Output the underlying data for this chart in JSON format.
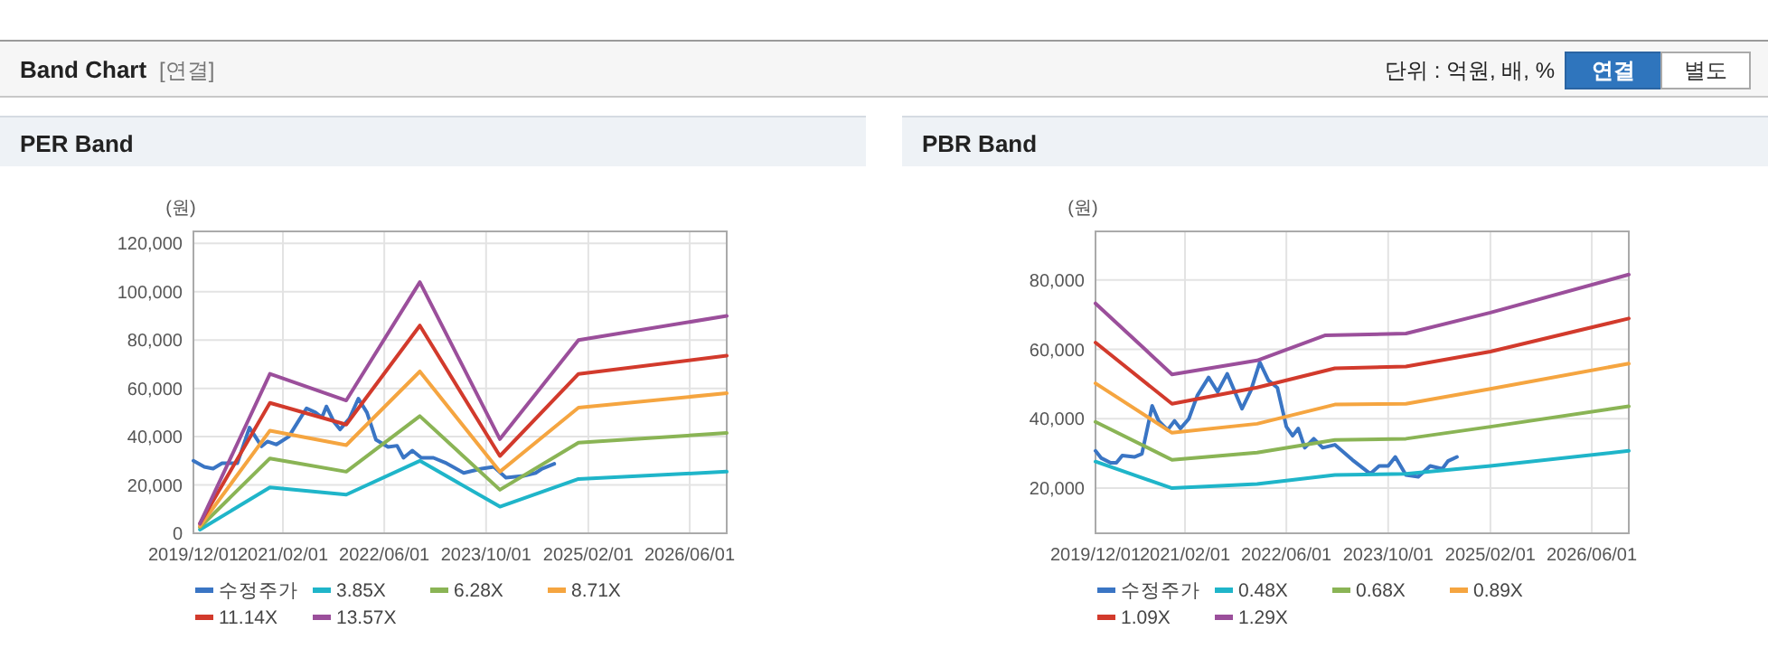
{
  "chart_data": [
    {
      "type": "other",
      "title": "Band Chart",
      "annotations": [
        "[연결]",
        "단위 : 억원, 배, %",
        "연결",
        "별도"
      ]
    },
    {
      "type": "line",
      "title": "PER Band",
      "ylabel": "(원)",
      "xlim": [
        "2019-12-01",
        "2026-11-25"
      ],
      "xticks": [
        {
          "value": "2019-12-01",
          "label": "2019/12/01"
        },
        {
          "value": "2021-02-01",
          "label": "2021/02/01"
        },
        {
          "value": "2022-06-01",
          "label": "2022/06/01"
        },
        {
          "value": "2023-10-01",
          "label": "2023/10/01"
        },
        {
          "value": "2025-02-01",
          "label": "2025/02/01"
        },
        {
          "value": "2026-06-01",
          "label": "2026/06/01"
        }
      ],
      "ylim": [
        0,
        125000
      ],
      "yticks": [
        0,
        {
          "value": 20000,
          "label": "20,000"
        },
        {
          "value": 40000,
          "label": "40,000"
        },
        {
          "value": 60000,
          "label": "60,000"
        },
        {
          "value": 80000,
          "label": "80,000"
        },
        {
          "value": 100000,
          "label": "100,000"
        },
        {
          "value": 120000,
          "label": "120,000"
        }
      ],
      "grid": true,
      "legend": "bottom",
      "series": [
        {
          "name": "수정주가",
          "color": "#3a75c4",
          "x": [
            "2019-12-01",
            "2020-01-22",
            "2020-03-04",
            "2020-04-16",
            "2020-06-28",
            "2020-08-25",
            "2020-10-22",
            "2020-11-19",
            "2021-01-01",
            "2021-03-01",
            "2021-04-13",
            "2021-05-25",
            "2021-07-07",
            "2021-08-07",
            "2021-08-28",
            "2021-10-04",
            "2021-11-01",
            "2021-12-16",
            "2022-01-28",
            "2022-03-10",
            "2022-04-22",
            "2022-06-19",
            "2022-08-01",
            "2022-09-01",
            "2022-10-13",
            "2022-11-25",
            "2023-01-22",
            "2023-03-19",
            "2023-06-16",
            "2023-09-10",
            "2023-11-07",
            "2024-01-04",
            "2024-03-28",
            "2024-05-25",
            "2024-06-25",
            "2024-08-22"
          ],
          "values": [
            30000,
            27500,
            26750,
            29000,
            29000,
            43750,
            36000,
            38000,
            36750,
            40000,
            46000,
            51750,
            50000,
            48000,
            52500,
            46000,
            43000,
            47500,
            55750,
            50000,
            38750,
            35750,
            36250,
            31250,
            34250,
            31250,
            31250,
            29250,
            25000,
            26750,
            27500,
            23000,
            23750,
            25000,
            26750,
            28750
          ]
        },
        {
          "name": "3.85X",
          "color": "#1fb5c9",
          "x": [
            "2020-01-01",
            "2020-12-01",
            "2021-12-01",
            "2022-11-18",
            "2023-12-06",
            "2024-12-16",
            "2026-11-25"
          ],
          "values": [
            1500,
            19000,
            16000,
            30000,
            11000,
            22500,
            25500
          ]
        },
        {
          "name": "6.28X",
          "color": "#8ab455",
          "x": [
            "2020-01-01",
            "2020-12-01",
            "2021-12-01",
            "2022-11-18",
            "2023-12-06",
            "2024-12-16",
            "2026-11-25"
          ],
          "values": [
            2500,
            31000,
            25500,
            48500,
            18000,
            37500,
            41500
          ]
        },
        {
          "name": "8.71X",
          "color": "#f5a540",
          "x": [
            "2020-01-01",
            "2020-12-01",
            "2021-12-01",
            "2022-11-18",
            "2023-12-06",
            "2024-12-16",
            "2026-11-25"
          ],
          "values": [
            3000,
            42500,
            36500,
            67000,
            25500,
            52000,
            58000
          ]
        },
        {
          "name": "11.14X",
          "color": "#d23a2c",
          "x": [
            "2020-01-01",
            "2020-12-01",
            "2021-12-01",
            "2022-11-18",
            "2023-12-06",
            "2024-12-16",
            "2026-11-25"
          ],
          "values": [
            4000,
            54000,
            45000,
            86000,
            32000,
            66000,
            73500
          ]
        },
        {
          "name": "13.57X",
          "color": "#9b4f9b",
          "x": [
            "2020-01-01",
            "2020-12-01",
            "2021-12-01",
            "2022-11-18",
            "2023-12-06",
            "2024-12-16",
            "2026-11-25"
          ],
          "values": [
            4000,
            66000,
            55000,
            104000,
            39000,
            80000,
            90000
          ]
        }
      ]
    },
    {
      "type": "line",
      "title": "PBR Band",
      "ylabel": "(원)",
      "xlim": [
        "2019-12-01",
        "2026-11-25"
      ],
      "xticks": [
        {
          "value": "2019-12-01",
          "label": "2019/12/01"
        },
        {
          "value": "2021-02-01",
          "label": "2021/02/01"
        },
        {
          "value": "2022-06-01",
          "label": "2022/06/01"
        },
        {
          "value": "2023-10-01",
          "label": "2023/10/01"
        },
        {
          "value": "2025-02-01",
          "label": "2025/02/01"
        },
        {
          "value": "2026-06-01",
          "label": "2026/06/01"
        }
      ],
      "ylim": [
        7000,
        94000
      ],
      "yticks": [
        {
          "value": 20000,
          "label": "20,000"
        },
        {
          "value": 40000,
          "label": "40,000"
        },
        {
          "value": 60000,
          "label": "60,000"
        },
        {
          "value": 80000,
          "label": "80,000"
        }
      ],
      "grid": true,
      "legend": "bottom",
      "series": [
        {
          "name": "수정주가",
          "color": "#3a75c4",
          "x": [
            "2019-12-01",
            "2019-12-29",
            "2020-02-11",
            "2020-03-10",
            "2020-04-07",
            "2020-06-04",
            "2020-07-10",
            "2020-08-28",
            "2020-09-28",
            "2020-11-10",
            "2020-12-13",
            "2021-01-10",
            "2021-02-19",
            "2021-04-01",
            "2021-05-25",
            "2021-07-07",
            "2021-08-22",
            "2021-11-01",
            "2021-12-13",
            "2022-01-25",
            "2022-03-07",
            "2022-04-19",
            "2022-06-01",
            "2022-07-01",
            "2022-07-28",
            "2022-08-28",
            "2022-10-10",
            "2022-11-22",
            "2023-01-19",
            "2023-04-13",
            "2023-07-07",
            "2023-08-19",
            "2023-10-01",
            "2023-11-04",
            "2023-12-25",
            "2024-02-22",
            "2024-04-19",
            "2024-06-16",
            "2024-07-13",
            "2024-08-25"
          ],
          "values": [
            30750,
            28650,
            27300,
            27300,
            29400,
            29000,
            29900,
            43750,
            39400,
            36800,
            39400,
            37200,
            39950,
            46700,
            51900,
            47750,
            52950,
            42900,
            48100,
            56250,
            51050,
            48950,
            37700,
            35100,
            37200,
            31650,
            34250,
            31650,
            32500,
            28150,
            24150,
            26400,
            26400,
            29000,
            23800,
            23300,
            26400,
            25550,
            27800,
            29000
          ]
        },
        {
          "name": "0.48X",
          "color": "#1fb5c9",
          "x": [
            "2019-12-01",
            "2020-12-01",
            "2022-01-12",
            "2023-01-19",
            "2023-12-25",
            "2025-02-01",
            "2026-11-25"
          ],
          "values": [
            27650,
            20000,
            21200,
            23800,
            24150,
            26400,
            30750
          ]
        },
        {
          "name": "0.68X",
          "color": "#8ab455",
          "x": [
            "2019-12-01",
            "2020-12-01",
            "2022-01-12",
            "2023-01-19",
            "2023-12-25",
            "2025-02-01",
            "2026-11-25"
          ],
          "values": [
            39100,
            28150,
            30250,
            33900,
            34250,
            37700,
            43600
          ]
        },
        {
          "name": "0.89X",
          "color": "#f5a540",
          "x": [
            "2019-12-01",
            "2020-12-01",
            "2022-01-12",
            "2023-01-19",
            "2023-12-25",
            "2025-02-01",
            "2026-11-25"
          ],
          "values": [
            50200,
            35950,
            38550,
            44100,
            44300,
            48600,
            55900
          ]
        },
        {
          "name": "1.09X",
          "color": "#d23a2c",
          "x": [
            "2019-12-01",
            "2020-12-01",
            "2022-01-12",
            "2023-01-19",
            "2023-12-25",
            "2025-02-01",
            "2026-11-25"
          ],
          "values": [
            61950,
            44300,
            49000,
            54550,
            55050,
            59350,
            68900
          ]
        },
        {
          "name": "1.29X",
          "color": "#9b4f9b",
          "x": [
            "2019-12-01",
            "2020-12-01",
            "2022-01-12",
            "2022-12-05",
            "2023-12-25",
            "2025-02-01",
            "2026-11-25"
          ],
          "values": [
            73250,
            52800,
            56800,
            64050,
            64550,
            70600,
            81550
          ]
        }
      ]
    }
  ]
}
